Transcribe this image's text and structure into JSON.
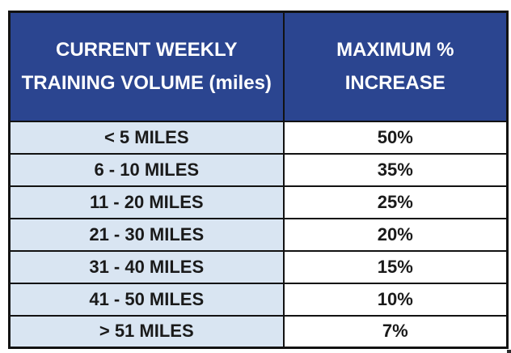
{
  "table": {
    "headers": [
      "CURRENT WEEKLY TRAINING VOLUME (miles)",
      "MAXIMUM % INCREASE"
    ],
    "rows": [
      {
        "volume": "< 5 MILES",
        "increase": "50%"
      },
      {
        "volume": "6 - 10 MILES",
        "increase": "35%"
      },
      {
        "volume": "11 - 20 MILES",
        "increase": "25%"
      },
      {
        "volume": "21 - 30 MILES",
        "increase": "20%"
      },
      {
        "volume": "31 - 40 MILES",
        "increase": "15%"
      },
      {
        "volume": "41 - 50 MILES",
        "increase": "10%"
      },
      {
        "volume": "> 51 MILES",
        "increase": "7%"
      }
    ]
  },
  "colors": {
    "header_bg": "#2B4590",
    "header_text": "#FFFFFF",
    "row_left_bg": "#D9E5F2",
    "row_right_bg": "#FFFFFF",
    "row_text": "#1A1A1A",
    "border": "#121212"
  },
  "chart_data": {
    "type": "table",
    "title": "",
    "columns": [
      "CURRENT WEEKLY TRAINING VOLUME (miles)",
      "MAXIMUM % INCREASE"
    ],
    "rows": [
      [
        "< 5 MILES",
        "50%"
      ],
      [
        "6 - 10 MILES",
        "35%"
      ],
      [
        "11 - 20 MILES",
        "25%"
      ],
      [
        "21 - 30 MILES",
        "20%"
      ],
      [
        "31 - 40 MILES",
        "15%"
      ],
      [
        "41 - 50 MILES",
        "10%"
      ],
      [
        "> 51 MILES",
        "7%"
      ]
    ],
    "increase_values_percent": [
      50,
      35,
      25,
      20,
      15,
      10,
      7
    ]
  }
}
